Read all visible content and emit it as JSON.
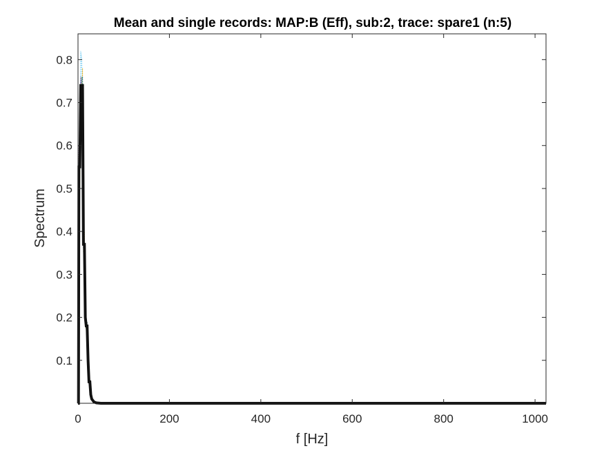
{
  "chart_data": {
    "type": "line",
    "title": "Mean and single records: MAP:B (Eff), sub:2, trace: spare1 (n:5)",
    "xlabel": "f [Hz]",
    "ylabel": "Spectrum",
    "xlim": [
      0,
      1024
    ],
    "ylim": [
      0,
      0.86
    ],
    "xticks": [
      0,
      200,
      400,
      600,
      800,
      1000
    ],
    "xtick_labels": [
      "0",
      "200",
      "400",
      "600",
      "800",
      "1000"
    ],
    "yticks": [
      0.1,
      0.2,
      0.3,
      0.4,
      0.5,
      0.6,
      0.7,
      0.8
    ],
    "ytick_labels": [
      "0.1",
      "0.2",
      "0.3",
      "0.4",
      "0.5",
      "0.6",
      "0.7",
      "0.8"
    ],
    "grid": false,
    "legend": "none",
    "colors": {
      "mean": "#111111",
      "single_1": "#4dbeee",
      "single_2": "#77ac30",
      "single_3": "#edb120",
      "single_4": "#7e2f8e",
      "single_5": "#0072bd"
    },
    "series": [
      {
        "x": [
          0,
          1,
          2,
          4,
          6,
          8,
          10,
          12,
          14,
          16,
          18,
          20,
          22,
          24,
          26,
          28,
          30,
          35,
          40,
          50,
          100,
          1024
        ],
        "values": [
          0.0,
          0.0,
          0.55,
          0.55,
          0.74,
          0.74,
          0.74,
          0.37,
          0.37,
          0.2,
          0.18,
          0.18,
          0.1,
          0.05,
          0.05,
          0.02,
          0.01,
          0.003,
          0.001,
          0.0,
          0.0,
          0.0
        ],
        "role": "mean"
      },
      {
        "x": [
          0,
          1,
          2,
          4,
          6,
          8,
          10,
          12,
          14,
          16,
          18,
          20,
          22,
          24,
          26,
          28,
          30,
          35,
          40,
          50,
          100,
          1024
        ],
        "values": [
          0.0,
          0.0,
          0.48,
          0.5,
          0.82,
          0.8,
          0.72,
          0.4,
          0.36,
          0.22,
          0.2,
          0.17,
          0.11,
          0.06,
          0.05,
          0.02,
          0.01,
          0.003,
          0.001,
          0.0,
          0.0,
          0.0
        ],
        "role": "single_1"
      },
      {
        "x": [
          0,
          1,
          2,
          4,
          6,
          8,
          10,
          12,
          14,
          16,
          18,
          20,
          22,
          24,
          26,
          28,
          30,
          35,
          40,
          50,
          100,
          1024
        ],
        "values": [
          0.0,
          0.0,
          0.58,
          0.6,
          0.7,
          0.76,
          0.7,
          0.35,
          0.34,
          0.19,
          0.17,
          0.18,
          0.09,
          0.05,
          0.04,
          0.02,
          0.01,
          0.003,
          0.001,
          0.0,
          0.0,
          0.0
        ],
        "role": "single_2"
      },
      {
        "x": [
          0,
          1,
          2,
          4,
          6,
          8,
          10,
          12,
          14,
          16,
          18,
          20,
          22,
          24,
          26,
          28,
          30,
          35,
          40,
          50,
          100,
          1024
        ],
        "values": [
          0.0,
          0.0,
          0.52,
          0.5,
          0.72,
          0.7,
          0.78,
          0.38,
          0.4,
          0.21,
          0.19,
          0.19,
          0.1,
          0.05,
          0.05,
          0.02,
          0.01,
          0.003,
          0.001,
          0.0,
          0.0,
          0.0
        ],
        "role": "single_3"
      },
      {
        "x": [
          0,
          1,
          2,
          4,
          6,
          8,
          10,
          12,
          14,
          16,
          18,
          20,
          22,
          24,
          26,
          28,
          30,
          35,
          40,
          50,
          100,
          1024
        ],
        "values": [
          0.0,
          0.0,
          0.6,
          0.58,
          0.76,
          0.72,
          0.74,
          0.36,
          0.37,
          0.2,
          0.18,
          0.17,
          0.1,
          0.05,
          0.05,
          0.02,
          0.01,
          0.003,
          0.001,
          0.0,
          0.0,
          0.0
        ],
        "role": "single_4"
      },
      {
        "x": [
          0,
          1,
          2,
          4,
          6,
          8,
          10,
          12,
          14,
          16,
          18,
          20,
          22,
          24,
          26,
          28,
          30,
          35,
          40,
          50,
          100,
          1024
        ],
        "values": [
          0.0,
          0.0,
          0.56,
          0.57,
          0.71,
          0.75,
          0.76,
          0.36,
          0.38,
          0.19,
          0.18,
          0.19,
          0.1,
          0.05,
          0.05,
          0.02,
          0.01,
          0.003,
          0.001,
          0.0,
          0.0,
          0.0
        ],
        "role": "single_5"
      }
    ]
  }
}
